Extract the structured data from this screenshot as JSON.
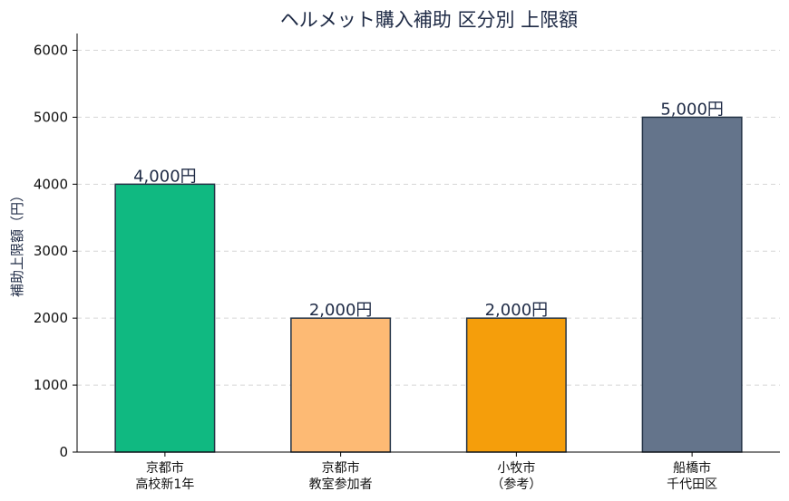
{
  "chart_data": {
    "type": "bar",
    "title": "ヘルメット購入補助 区分別 上限額",
    "ylabel": "補助上限額（円）",
    "xlabel": "",
    "ylim": [
      0,
      6250
    ],
    "yticks": [
      0,
      1000,
      2000,
      3000,
      4000,
      5000,
      6000
    ],
    "grid": true,
    "categories": [
      [
        "京都市",
        "高校新1年"
      ],
      [
        "京都市",
        "教室参加者"
      ],
      [
        "小牧市",
        "（参考）"
      ],
      [
        "船橋市",
        "千代田区"
      ]
    ],
    "values": [
      4000,
      2000,
      2000,
      5000
    ],
    "data_labels": [
      "4,000円",
      "2,000円",
      "2,000円",
      "5,000円"
    ],
    "colors": [
      "#10b981",
      "#fdba74",
      "#f59e0b",
      "#64748b"
    ]
  }
}
